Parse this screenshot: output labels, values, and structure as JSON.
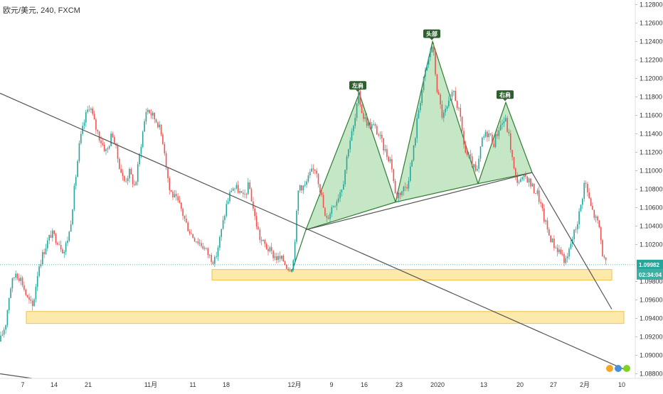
{
  "header": {
    "title": "欧元/美元, 240, FXCM"
  },
  "chart_data": {
    "type": "candlestick",
    "title": "欧元/美元, 240, FXCM",
    "timeframe": "240",
    "ylim": [
      1.0875,
      1.1285
    ],
    "price_ticks": [
      "1.12800",
      "1.12600",
      "1.12400",
      "1.12200",
      "1.12000",
      "1.11800",
      "1.11600",
      "1.11400",
      "1.11200",
      "1.11000",
      "1.10800",
      "1.10600",
      "1.10400",
      "1.10200",
      "1.09800",
      "1.09600",
      "1.09400",
      "1.09200",
      "1.09000",
      "1.08800"
    ],
    "time_ticks": [
      {
        "label": "7",
        "x": 32
      },
      {
        "label": "14",
        "x": 76
      },
      {
        "label": "21",
        "x": 124
      },
      {
        "label": "11月",
        "x": 212
      },
      {
        "label": "11",
        "x": 271
      },
      {
        "label": "18",
        "x": 318
      },
      {
        "label": "12月",
        "x": 414
      },
      {
        "label": "9",
        "x": 466
      },
      {
        "label": "16",
        "x": 512
      },
      {
        "label": "23",
        "x": 561
      },
      {
        "label": "2020",
        "x": 615
      },
      {
        "label": "13",
        "x": 680
      },
      {
        "label": "20",
        "x": 731
      },
      {
        "label": "27",
        "x": 778
      },
      {
        "label": "2月",
        "x": 822
      },
      {
        "label": "10",
        "x": 874
      }
    ],
    "current_price": {
      "value": "1.09982",
      "countdown": "02:34:04"
    },
    "pattern_labels": {
      "left": "左肩",
      "head": "头部",
      "right": "右肩"
    },
    "price_anchors": [
      {
        "x": 0,
        "p": 1.0915
      },
      {
        "x": 8,
        "p": 1.0935
      },
      {
        "x": 14,
        "p": 1.0972
      },
      {
        "x": 22,
        "p": 1.099
      },
      {
        "x": 30,
        "p": 1.0982
      },
      {
        "x": 38,
        "p": 1.0962
      },
      {
        "x": 46,
        "p": 1.0952
      },
      {
        "x": 54,
        "p": 1.0996
      },
      {
        "x": 64,
        "p": 1.1018
      },
      {
        "x": 72,
        "p": 1.1032
      },
      {
        "x": 82,
        "p": 1.1024
      },
      {
        "x": 90,
        "p": 1.1012
      },
      {
        "x": 98,
        "p": 1.1035
      },
      {
        "x": 106,
        "p": 1.109
      },
      {
        "x": 112,
        "p": 1.113
      },
      {
        "x": 120,
        "p": 1.1158
      },
      {
        "x": 126,
        "p": 1.1172
      },
      {
        "x": 134,
        "p": 1.1148
      },
      {
        "x": 142,
        "p": 1.1132
      },
      {
        "x": 150,
        "p": 1.112
      },
      {
        "x": 158,
        "p": 1.1142
      },
      {
        "x": 166,
        "p": 1.1112
      },
      {
        "x": 174,
        "p": 1.1088
      },
      {
        "x": 182,
        "p": 1.1098
      },
      {
        "x": 190,
        "p": 1.1082
      },
      {
        "x": 198,
        "p": 1.1128
      },
      {
        "x": 206,
        "p": 1.1168
      },
      {
        "x": 214,
        "p": 1.116
      },
      {
        "x": 222,
        "p": 1.1152
      },
      {
        "x": 230,
        "p": 1.113
      },
      {
        "x": 238,
        "p": 1.108
      },
      {
        "x": 246,
        "p": 1.107
      },
      {
        "x": 254,
        "p": 1.106
      },
      {
        "x": 262,
        "p": 1.1042
      },
      {
        "x": 270,
        "p": 1.103
      },
      {
        "x": 278,
        "p": 1.1024
      },
      {
        "x": 286,
        "p": 1.1018
      },
      {
        "x": 294,
        "p": 1.1008
      },
      {
        "x": 302,
        "p": 1.1002
      },
      {
        "x": 310,
        "p": 1.103
      },
      {
        "x": 318,
        "p": 1.1062
      },
      {
        "x": 326,
        "p": 1.1082
      },
      {
        "x": 334,
        "p": 1.108
      },
      {
        "x": 342,
        "p": 1.107
      },
      {
        "x": 350,
        "p": 1.1085
      },
      {
        "x": 358,
        "p": 1.105
      },
      {
        "x": 366,
        "p": 1.1025
      },
      {
        "x": 374,
        "p": 1.1018
      },
      {
        "x": 382,
        "p": 1.101
      },
      {
        "x": 390,
        "p": 1.1005
      },
      {
        "x": 398,
        "p": 1.1003
      },
      {
        "x": 406,
        "p": 1.0994
      },
      {
        "x": 412,
        "p": 1.1
      },
      {
        "x": 420,
        "p": 1.1085
      },
      {
        "x": 428,
        "p": 1.1082
      },
      {
        "x": 436,
        "p": 1.1096
      },
      {
        "x": 444,
        "p": 1.1104
      },
      {
        "x": 452,
        "p": 1.1072
      },
      {
        "x": 458,
        "p": 1.1044
      },
      {
        "x": 466,
        "p": 1.106
      },
      {
        "x": 474,
        "p": 1.107
      },
      {
        "x": 482,
        "p": 1.1086
      },
      {
        "x": 490,
        "p": 1.1128
      },
      {
        "x": 498,
        "p": 1.115
      },
      {
        "x": 504,
        "p": 1.1182
      },
      {
        "x": 510,
        "p": 1.116
      },
      {
        "x": 518,
        "p": 1.115
      },
      {
        "x": 526,
        "p": 1.1148
      },
      {
        "x": 534,
        "p": 1.1136
      },
      {
        "x": 542,
        "p": 1.112
      },
      {
        "x": 550,
        "p": 1.111
      },
      {
        "x": 556,
        "p": 1.1072
      },
      {
        "x": 564,
        "p": 1.1078
      },
      {
        "x": 572,
        "p": 1.1085
      },
      {
        "x": 580,
        "p": 1.1115
      },
      {
        "x": 588,
        "p": 1.1165
      },
      {
        "x": 596,
        "p": 1.12
      },
      {
        "x": 602,
        "p": 1.122
      },
      {
        "x": 608,
        "p": 1.1238
      },
      {
        "x": 614,
        "p": 1.119
      },
      {
        "x": 622,
        "p": 1.1158
      },
      {
        "x": 630,
        "p": 1.117
      },
      {
        "x": 638,
        "p": 1.1186
      },
      {
        "x": 646,
        "p": 1.116
      },
      {
        "x": 654,
        "p": 1.112
      },
      {
        "x": 662,
        "p": 1.111
      },
      {
        "x": 670,
        "p": 1.1095
      },
      {
        "x": 678,
        "p": 1.1135
      },
      {
        "x": 686,
        "p": 1.1142
      },
      {
        "x": 694,
        "p": 1.113
      },
      {
        "x": 702,
        "p": 1.1148
      },
      {
        "x": 710,
        "p": 1.1156
      },
      {
        "x": 716,
        "p": 1.1135
      },
      {
        "x": 724,
        "p": 1.1092
      },
      {
        "x": 732,
        "p": 1.1088
      },
      {
        "x": 740,
        "p": 1.1094
      },
      {
        "x": 748,
        "p": 1.1082
      },
      {
        "x": 756,
        "p": 1.1075
      },
      {
        "x": 764,
        "p": 1.105
      },
      {
        "x": 772,
        "p": 1.103
      },
      {
        "x": 780,
        "p": 1.1018
      },
      {
        "x": 788,
        "p": 1.1012
      },
      {
        "x": 796,
        "p": 1.1
      },
      {
        "x": 802,
        "p": 1.102
      },
      {
        "x": 810,
        "p": 1.104
      },
      {
        "x": 816,
        "p": 1.106
      },
      {
        "x": 822,
        "p": 1.109
      },
      {
        "x": 830,
        "p": 1.1062
      },
      {
        "x": 836,
        "p": 1.105
      },
      {
        "x": 842,
        "p": 1.104
      },
      {
        "x": 848,
        "p": 1.1005
      },
      {
        "x": 852,
        "p": 1.0998
      }
    ],
    "trendlines": [
      {
        "name": "long-downtrend",
        "p1": {
          "x": 0,
          "p": 1.1184
        },
        "p2": {
          "x": 880,
          "p": 1.0884
        }
      },
      {
        "name": "neckline",
        "p1": {
          "x": 430,
          "p": 1.1036
        },
        "p2": {
          "x": 748,
          "p": 1.1098
        }
      },
      {
        "name": "breakdown-line",
        "p1": {
          "x": 748,
          "p": 1.1098
        },
        "p2": {
          "x": 860,
          "p": 1.095
        }
      },
      {
        "name": "upper-left-line",
        "p1": {
          "x": 0,
          "p": 1.088
        },
        "p2": {
          "x": 45,
          "p": 1.0875
        }
      }
    ],
    "zones": [
      {
        "name": "support-zone-1",
        "x1": 298,
        "x2": 860,
        "p_top": 1.0993,
        "p_bottom": 1.09815
      },
      {
        "name": "support-zone-2",
        "x1": 37,
        "x2": 877,
        "p_top": 1.09475,
        "p_bottom": 1.09345
      }
    ],
    "pattern_triangles": [
      {
        "name": "left-shoulder",
        "points": [
          {
            "x": 430,
            "p": 1.1036
          },
          {
            "x": 505,
            "p": 1.1184
          },
          {
            "x": 556,
            "p": 1.1066
          }
        ]
      },
      {
        "name": "head",
        "points": [
          {
            "x": 556,
            "p": 1.1066
          },
          {
            "x": 608,
            "p": 1.124
          },
          {
            "x": 672,
            "p": 1.1086
          }
        ]
      },
      {
        "name": "right-shoulder",
        "points": [
          {
            "x": 672,
            "p": 1.1086
          },
          {
            "x": 711,
            "p": 1.1174
          },
          {
            "x": 748,
            "p": 1.1098
          }
        ]
      }
    ],
    "pattern_lines": [
      {
        "name": "entry-line",
        "p1": {
          "x": 410,
          "p": 1.099
        },
        "p2": {
          "x": 430,
          "p": 1.1036
        }
      }
    ],
    "colors": {
      "up": "#26a69a",
      "down": "#ef5350",
      "trend": "#555555",
      "pattern_fill": "#b2dfb2",
      "pattern_stroke": "#2e7d32",
      "zone_fill": "#fde9a9",
      "zone_stroke": "#f0c24a",
      "label_bg": "#2e5d2e",
      "price_badge": "#26a69a",
      "price_line": "#26a69a",
      "axis": "#333333"
    }
  }
}
